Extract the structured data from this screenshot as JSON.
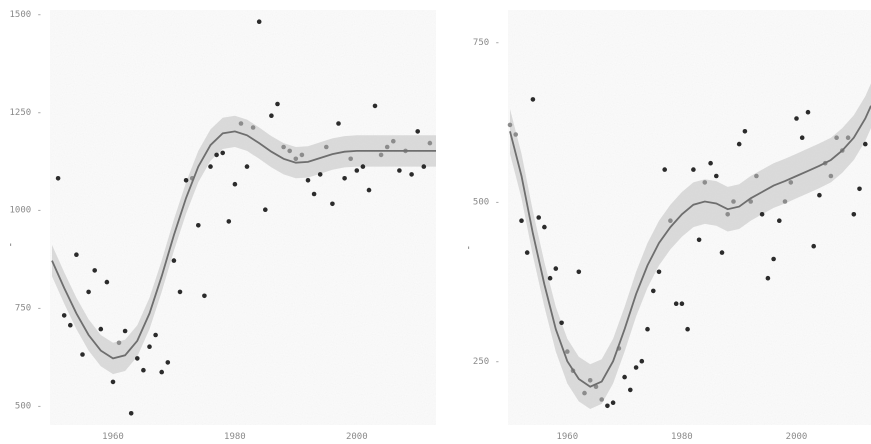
{
  "chart_data": [
    {
      "type": "scatter",
      "title": "",
      "xlabel": "",
      "ylabel": "",
      "xlim": [
        1950,
        2013
      ],
      "ylim": [
        450,
        1510
      ],
      "x_ticks": [
        1960,
        1980,
        2000
      ],
      "x_tick_labels": [
        "1960",
        "1980",
        "2000"
      ],
      "y_ticks": [
        500,
        750,
        1000,
        1250,
        1500
      ],
      "y_tick_labels": [
        "500",
        "750",
        "1000",
        "1250",
        "1500"
      ],
      "grid": false,
      "legend": "none",
      "series": [
        {
          "points": [
            [
              1951,
              1080
            ],
            [
              1952,
              730
            ],
            [
              1953,
              705
            ],
            [
              1954,
              885
            ],
            [
              1955,
              630
            ],
            [
              1956,
              790
            ],
            [
              1957,
              845
            ],
            [
              1958,
              695
            ],
            [
              1959,
              815
            ],
            [
              1960,
              560
            ],
            [
              1961,
              660
            ],
            [
              1962,
              690
            ],
            [
              1963,
              480
            ],
            [
              1964,
              620
            ],
            [
              1965,
              590
            ],
            [
              1966,
              650
            ],
            [
              1967,
              680
            ],
            [
              1968,
              585
            ],
            [
              1969,
              610
            ],
            [
              1970,
              870
            ],
            [
              1971,
              790
            ],
            [
              1972,
              1075
            ],
            [
              1973,
              1080
            ],
            [
              1974,
              960
            ],
            [
              1975,
              780
            ],
            [
              1976,
              1110
            ],
            [
              1977,
              1140
            ],
            [
              1978,
              1145
            ],
            [
              1979,
              970
            ],
            [
              1980,
              1065
            ],
            [
              1981,
              1220
            ],
            [
              1982,
              1110
            ],
            [
              1983,
              1210
            ],
            [
              1984,
              1480
            ],
            [
              1985,
              1000
            ],
            [
              1986,
              1240
            ],
            [
              1987,
              1270
            ],
            [
              1988,
              1160
            ],
            [
              1989,
              1150
            ],
            [
              1990,
              1130
            ],
            [
              1991,
              1140
            ],
            [
              1992,
              1075
            ],
            [
              1993,
              1040
            ],
            [
              1994,
              1090
            ],
            [
              1995,
              1160
            ],
            [
              1996,
              1015
            ],
            [
              1997,
              1220
            ],
            [
              1998,
              1080
            ],
            [
              1999,
              1130
            ],
            [
              2000,
              1100
            ],
            [
              2001,
              1110
            ],
            [
              2002,
              1050
            ],
            [
              2003,
              1265
            ],
            [
              2004,
              1140
            ],
            [
              2005,
              1160
            ],
            [
              2006,
              1175
            ],
            [
              2007,
              1100
            ],
            [
              2008,
              1150
            ],
            [
              2009,
              1090
            ],
            [
              2010,
              1200
            ],
            [
              2011,
              1110
            ],
            [
              2012,
              1170
            ]
          ]
        },
        {
          "type": "line",
          "name": "",
          "fit": [
            [
              1950,
              870
            ],
            [
              1952,
              800
            ],
            [
              1954,
              735
            ],
            [
              1956,
              680
            ],
            [
              1958,
              640
            ],
            [
              1960,
              620
            ],
            [
              1962,
              628
            ],
            [
              1964,
              665
            ],
            [
              1966,
              735
            ],
            [
              1968,
              830
            ],
            [
              1970,
              935
            ],
            [
              1972,
              1030
            ],
            [
              1974,
              1110
            ],
            [
              1976,
              1165
            ],
            [
              1978,
              1195
            ],
            [
              1980,
              1200
            ],
            [
              1982,
              1190
            ],
            [
              1984,
              1170
            ],
            [
              1986,
              1148
            ],
            [
              1988,
              1130
            ],
            [
              1990,
              1120
            ],
            [
              1992,
              1122
            ],
            [
              1994,
              1132
            ],
            [
              1996,
              1142
            ],
            [
              1998,
              1148
            ],
            [
              2000,
              1150
            ],
            [
              2004,
              1150
            ],
            [
              2008,
              1150
            ],
            [
              2012,
              1150
            ],
            [
              2013,
              1150
            ]
          ],
          "band": 40
        }
      ]
    },
    {
      "type": "scatter",
      "title": "",
      "xlabel": "",
      "ylabel": "",
      "xlim": [
        1950,
        2013
      ],
      "ylim": [
        150,
        800
      ],
      "x_ticks": [
        1960,
        1980,
        2000
      ],
      "x_tick_labels": [
        "1960",
        "1980",
        "2000"
      ],
      "y_ticks": [
        250,
        500,
        750
      ],
      "y_tick_labels": [
        "250",
        "500",
        "750"
      ],
      "grid": false,
      "legend": "none",
      "series": [
        {
          "points": [
            [
              1950,
              620
            ],
            [
              1951,
              605
            ],
            [
              1952,
              470
            ],
            [
              1953,
              420
            ],
            [
              1954,
              660
            ],
            [
              1955,
              475
            ],
            [
              1956,
              460
            ],
            [
              1957,
              380
            ],
            [
              1958,
              395
            ],
            [
              1959,
              310
            ],
            [
              1960,
              265
            ],
            [
              1961,
              235
            ],
            [
              1962,
              390
            ],
            [
              1963,
              200
            ],
            [
              1964,
              220
            ],
            [
              1965,
              210
            ],
            [
              1966,
              190
            ],
            [
              1967,
              180
            ],
            [
              1968,
              185
            ],
            [
              1969,
              270
            ],
            [
              1970,
              225
            ],
            [
              1971,
              205
            ],
            [
              1972,
              240
            ],
            [
              1973,
              250
            ],
            [
              1974,
              300
            ],
            [
              1975,
              360
            ],
            [
              1976,
              390
            ],
            [
              1977,
              550
            ],
            [
              1978,
              470
            ],
            [
              1979,
              340
            ],
            [
              1980,
              340
            ],
            [
              1981,
              300
            ],
            [
              1982,
              550
            ],
            [
              1983,
              440
            ],
            [
              1984,
              530
            ],
            [
              1985,
              560
            ],
            [
              1986,
              540
            ],
            [
              1987,
              420
            ],
            [
              1988,
              480
            ],
            [
              1989,
              500
            ],
            [
              1990,
              590
            ],
            [
              1991,
              610
            ],
            [
              1992,
              500
            ],
            [
              1993,
              540
            ],
            [
              1994,
              480
            ],
            [
              1995,
              380
            ],
            [
              1996,
              410
            ],
            [
              1997,
              470
            ],
            [
              1998,
              500
            ],
            [
              1999,
              530
            ],
            [
              2000,
              630
            ],
            [
              2001,
              600
            ],
            [
              2002,
              640
            ],
            [
              2003,
              430
            ],
            [
              2004,
              510
            ],
            [
              2005,
              560
            ],
            [
              2006,
              540
            ],
            [
              2007,
              600
            ],
            [
              2008,
              580
            ],
            [
              2009,
              600
            ],
            [
              2010,
              480
            ],
            [
              2011,
              520
            ],
            [
              2012,
              590
            ]
          ]
        },
        {
          "type": "line",
          "name": "",
          "fit": [
            [
              1950,
              610
            ],
            [
              1952,
              540
            ],
            [
              1954,
              450
            ],
            [
              1956,
              370
            ],
            [
              1958,
              300
            ],
            [
              1960,
              250
            ],
            [
              1962,
              222
            ],
            [
              1964,
              210
            ],
            [
              1966,
              218
            ],
            [
              1968,
              250
            ],
            [
              1970,
              300
            ],
            [
              1972,
              355
            ],
            [
              1974,
              400
            ],
            [
              1976,
              435
            ],
            [
              1978,
              460
            ],
            [
              1980,
              480
            ],
            [
              1982,
              495
            ],
            [
              1984,
              500
            ],
            [
              1986,
              497
            ],
            [
              1988,
              488
            ],
            [
              1990,
              492
            ],
            [
              1992,
              505
            ],
            [
              1994,
              515
            ],
            [
              1996,
              525
            ],
            [
              1998,
              532
            ],
            [
              2000,
              540
            ],
            [
              2002,
              548
            ],
            [
              2004,
              556
            ],
            [
              2006,
              565
            ],
            [
              2008,
              580
            ],
            [
              2010,
              600
            ],
            [
              2012,
              630
            ],
            [
              2013,
              650
            ]
          ],
          "band": 35
        }
      ]
    }
  ]
}
